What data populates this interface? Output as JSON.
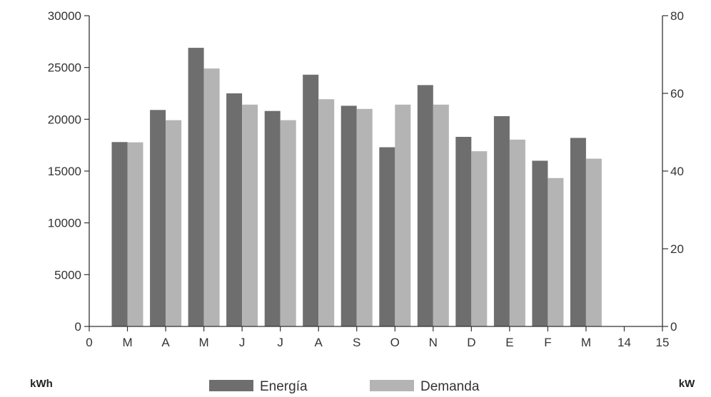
{
  "chart_data": {
    "type": "bar",
    "x_tick_labels": [
      "0",
      "M",
      "A",
      "M",
      "J",
      "J",
      "A",
      "S",
      "O",
      "N",
      "D",
      "E",
      "F",
      "M",
      "14",
      "15"
    ],
    "categories": [
      "M",
      "A",
      "M",
      "J",
      "J",
      "A",
      "S",
      "O",
      "N",
      "D",
      "E",
      "F",
      "M"
    ],
    "xlim": [
      0,
      15
    ],
    "series": [
      {
        "name": "Energía",
        "axis": "left",
        "color": "#6e6e6e",
        "values": [
          17800,
          20900,
          26900,
          22500,
          20800,
          24300,
          21300,
          17300,
          23300,
          18300,
          20300,
          16000,
          18200
        ]
      },
      {
        "name": "Demanda",
        "axis": "right",
        "color": "#b4b4b4",
        "values": [
          47.4,
          53.1,
          66.4,
          57.1,
          53.1,
          58.5,
          56.0,
          57.1,
          57.1,
          45.1,
          48.1,
          38.2,
          43.2
        ]
      }
    ],
    "y_left": {
      "ticks": [
        0,
        5000,
        10000,
        15000,
        20000,
        25000,
        30000
      ],
      "ylim": [
        0,
        30000
      ],
      "unit": "kWh"
    },
    "y_right": {
      "ticks": [
        0,
        20,
        40,
        60,
        80
      ],
      "ylim": [
        0,
        80
      ],
      "unit": "kW"
    },
    "grid": false,
    "legend": {
      "position": "bottom",
      "entries": [
        "Energía",
        "Demanda"
      ]
    }
  }
}
